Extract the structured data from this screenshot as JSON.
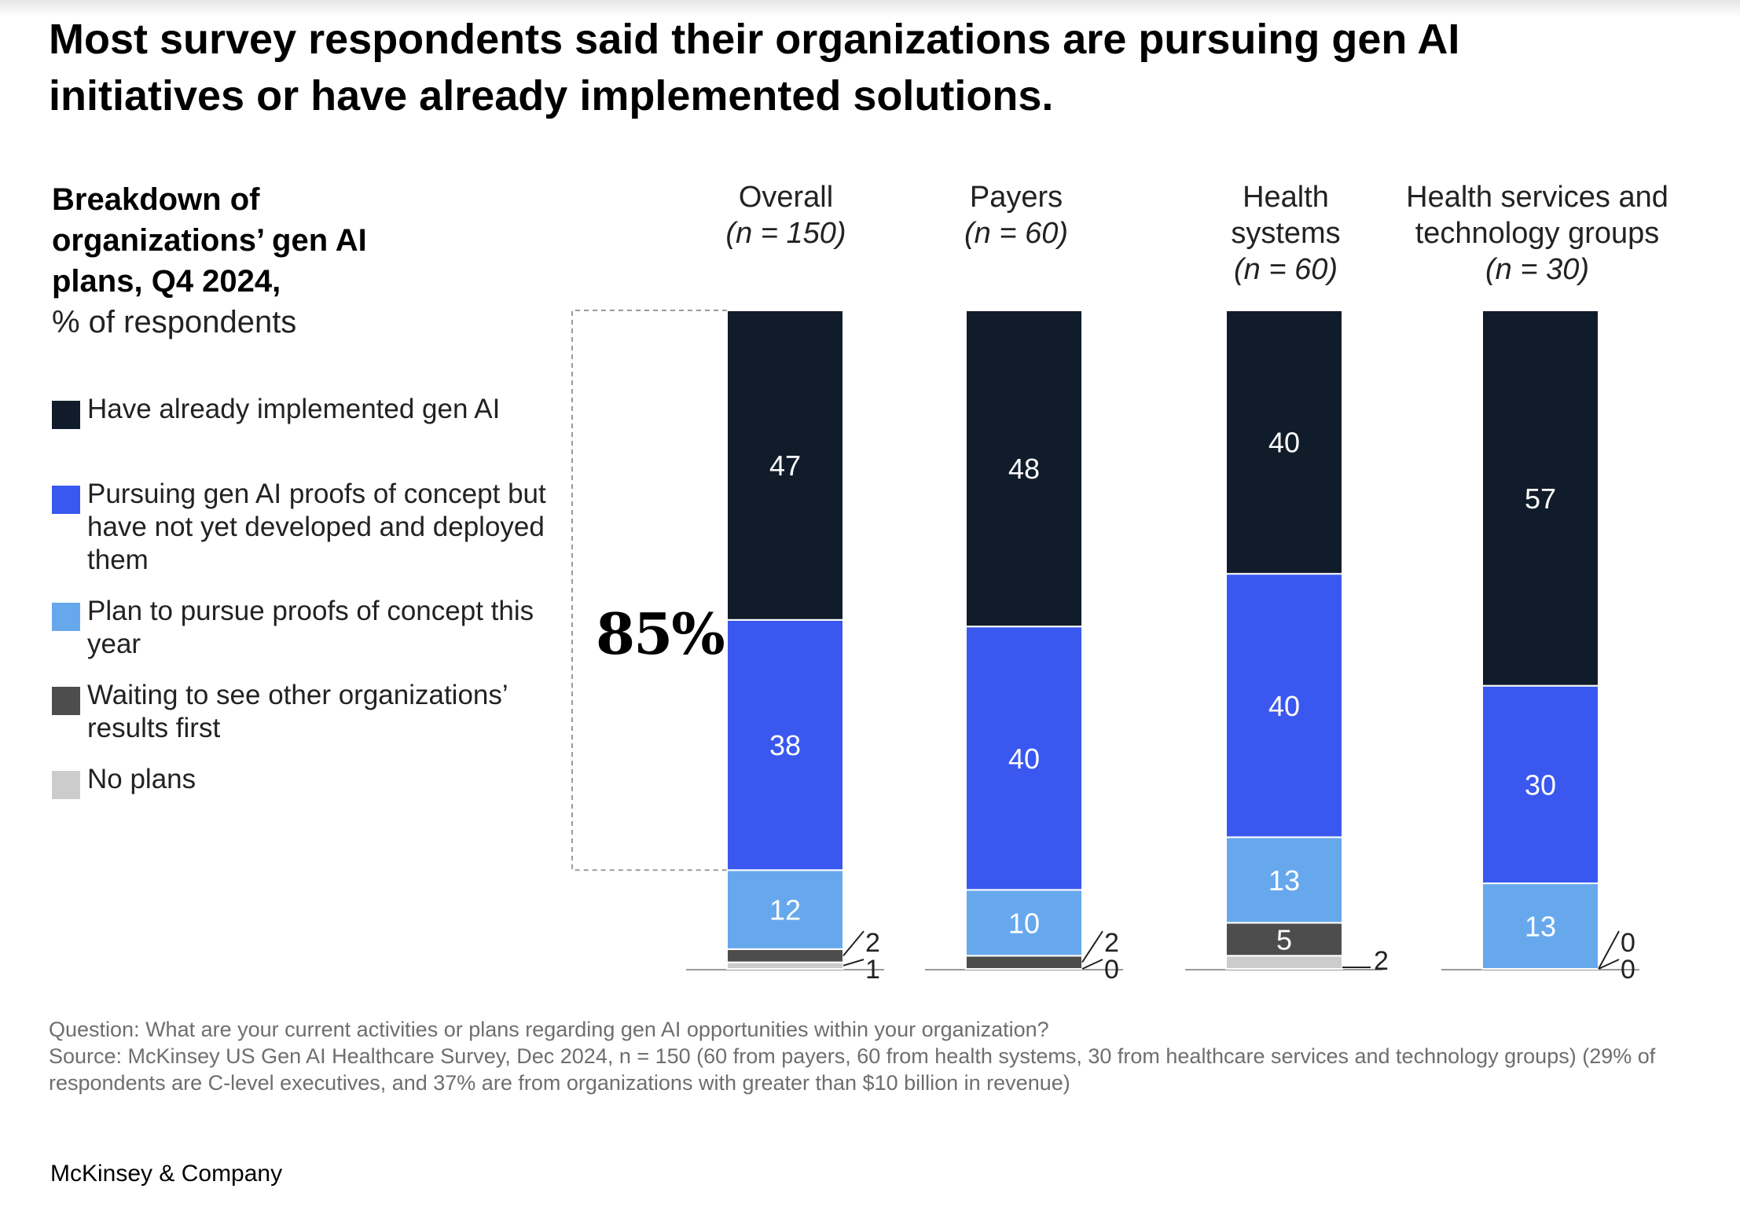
{
  "headline": "Most survey respondents said their organizations are pursuing gen AI initiatives or have already implemented solutions.",
  "subtitle": {
    "line1": "Breakdown of",
    "line2": "organizations’ gen AI",
    "line3": "plans, Q4 2024,",
    "unit": "% of respondents"
  },
  "legend": [
    {
      "label": "Have already implemented gen AI",
      "color": "#111c2a"
    },
    {
      "label": "Pursuing gen AI proofs of concept but have not yet developed and deployed them",
      "color": "#3a58ef"
    },
    {
      "label": "Plan to pursue proofs of concept this year",
      "color": "#67a8ed"
    },
    {
      "label": "Waiting to see other organizations’ results first",
      "color": "#4d4d4d"
    },
    {
      "label": "No plans",
      "color": "#cccccc"
    }
  ],
  "callout": "85%",
  "chart_data": {
    "type": "bar",
    "stacked": true,
    "title": "Breakdown of organizations’ gen AI plans, Q4 2024, % of respondents",
    "categories": [
      {
        "name": "Overall",
        "n": "(n = 150)"
      },
      {
        "name": "Payers",
        "n": "(n = 60)"
      },
      {
        "name": "Health systems",
        "n": "(n = 60)"
      },
      {
        "name": "Health services and technology groups",
        "n": "(n = 30)"
      }
    ],
    "series": [
      {
        "name": "No plans",
        "values": [
          1,
          0,
          2,
          0
        ]
      },
      {
        "name": "Waiting to see other organizations’ results first",
        "values": [
          2,
          2,
          5,
          0
        ]
      },
      {
        "name": "Plan to pursue proofs of concept this year",
        "values": [
          12,
          10,
          13,
          13
        ]
      },
      {
        "name": "Pursuing gen AI proofs of concept but have not yet developed and deployed them",
        "values": [
          38,
          40,
          40,
          30
        ]
      },
      {
        "name": "Have already implemented gen AI",
        "values": [
          47,
          48,
          40,
          57
        ]
      }
    ],
    "ylim": [
      0,
      100
    ],
    "annotation": {
      "label": "85%",
      "category": "Overall",
      "covers": [
        "Have already implemented gen AI",
        "Pursuing gen AI proofs of concept but have not yet developed and deployed them"
      ]
    }
  },
  "footnote": {
    "question": "Question: What are your current activities or plans regarding gen AI opportunities within your organization?",
    "source": "Source: McKinsey US Gen AI Healthcare Survey, Dec 2024, n = 150 (60 from payers, 60 from health systems, 30 from healthcare services and technology groups) (29% of respondents are C-level executives, and 37% are from organizations with greater than $10 billion in revenue)"
  },
  "brand": "McKinsey & Company"
}
